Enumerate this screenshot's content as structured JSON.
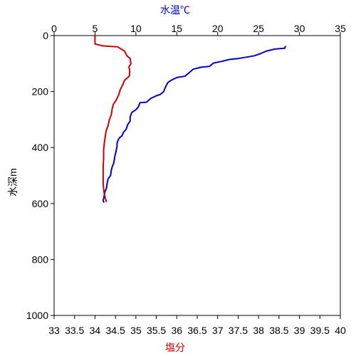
{
  "chart_data": {
    "type": "line",
    "top_axis_label": "水温℃",
    "bottom_axis_label": "塩分",
    "left_axis_label": "水深m",
    "temperature_axis": {
      "range": [
        0,
        35
      ],
      "ticks": [
        0,
        5,
        10,
        15,
        20,
        25,
        30,
        35
      ],
      "tick_labels": [
        "0",
        "5",
        "10",
        "15",
        "20",
        "25",
        "30",
        "35"
      ]
    },
    "salinity_axis": {
      "range": [
        33,
        40
      ],
      "ticks": [
        33,
        33.5,
        34,
        34.5,
        35,
        35.5,
        36,
        36.5,
        37,
        37.5,
        38,
        38.5,
        39,
        39.5,
        40
      ],
      "tick_labels": [
        "33",
        "33.5",
        "34",
        "34.5",
        "35",
        "35.5",
        "36",
        "36.5",
        "37",
        "37.5",
        "38",
        "38.5",
        "39",
        "39.5",
        "40"
      ]
    },
    "depth_axis": {
      "range": [
        0,
        1000
      ],
      "inverted": true,
      "ticks": [
        0,
        200,
        400,
        600,
        800,
        1000
      ],
      "tick_labels": [
        "0",
        "200",
        "400",
        "600",
        "800",
        "1000"
      ]
    },
    "series": [
      {
        "color": "#0000cc",
        "x_axis": "temperature",
        "points": [
          [
            28.3,
            37
          ],
          [
            28.2,
            45
          ],
          [
            27.0,
            48
          ],
          [
            26.0,
            55
          ],
          [
            25.2,
            65
          ],
          [
            24.5,
            72
          ],
          [
            23.5,
            77
          ],
          [
            22.5,
            82
          ],
          [
            21.5,
            85
          ],
          [
            20.5,
            92
          ],
          [
            19.5,
            98
          ],
          [
            19.0,
            110
          ],
          [
            18.0,
            113
          ],
          [
            17.0,
            120
          ],
          [
            16.5,
            133
          ],
          [
            16.0,
            145
          ],
          [
            15.0,
            150
          ],
          [
            14.3,
            160
          ],
          [
            13.9,
            168
          ],
          [
            13.6,
            185
          ],
          [
            13.4,
            200
          ],
          [
            13.0,
            210
          ],
          [
            12.5,
            215
          ],
          [
            11.8,
            225
          ],
          [
            11.3,
            238
          ],
          [
            10.5,
            240
          ],
          [
            10.3,
            255
          ],
          [
            10.0,
            265
          ],
          [
            9.5,
            275
          ],
          [
            9.3,
            290
          ],
          [
            9.3,
            305
          ],
          [
            9.0,
            318
          ],
          [
            8.8,
            335
          ],
          [
            8.5,
            345
          ],
          [
            8.3,
            358
          ],
          [
            8.0,
            365
          ],
          [
            7.8,
            375
          ],
          [
            7.7,
            385
          ],
          [
            7.7,
            395
          ],
          [
            7.6,
            410
          ],
          [
            7.4,
            435
          ],
          [
            7.3,
            455
          ],
          [
            7.1,
            470
          ],
          [
            7.0,
            480
          ],
          [
            6.9,
            500
          ],
          [
            6.6,
            512
          ],
          [
            6.5,
            525
          ],
          [
            6.4,
            545
          ],
          [
            6.2,
            560
          ],
          [
            6.1,
            575
          ],
          [
            6.0,
            590
          ],
          [
            6.1,
            597
          ]
        ]
      },
      {
        "color": "#cc0000",
        "x_axis": "salinity",
        "points": [
          [
            34.0,
            0
          ],
          [
            34.0,
            30
          ],
          [
            34.2,
            37
          ],
          [
            34.55,
            40
          ],
          [
            34.72,
            55
          ],
          [
            34.78,
            72
          ],
          [
            34.86,
            82
          ],
          [
            34.88,
            100
          ],
          [
            34.83,
            112
          ],
          [
            34.85,
            125
          ],
          [
            34.84,
            145
          ],
          [
            34.8,
            150
          ],
          [
            34.72,
            160
          ],
          [
            34.68,
            175
          ],
          [
            34.62,
            192
          ],
          [
            34.58,
            212
          ],
          [
            34.52,
            230
          ],
          [
            34.45,
            245
          ],
          [
            34.42,
            262
          ],
          [
            34.4,
            282
          ],
          [
            34.35,
            302
          ],
          [
            34.32,
            322
          ],
          [
            34.27,
            342
          ],
          [
            34.25,
            362
          ],
          [
            34.23,
            382
          ],
          [
            34.21,
            410
          ],
          [
            34.21,
            440
          ],
          [
            34.2,
            470
          ],
          [
            34.2,
            500
          ],
          [
            34.2,
            530
          ],
          [
            34.22,
            560
          ],
          [
            34.25,
            580
          ],
          [
            34.28,
            595
          ]
        ]
      }
    ]
  }
}
